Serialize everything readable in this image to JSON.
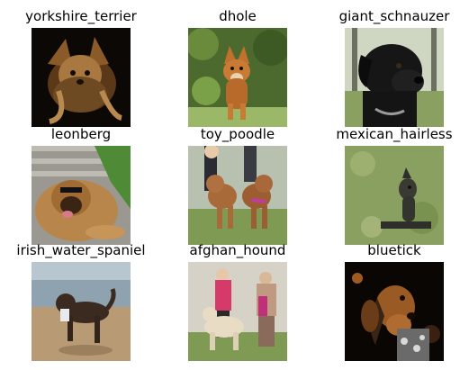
{
  "grid": {
    "rows": 3,
    "cols": 3,
    "cells": [
      {
        "label": "yorkshire_terrier"
      },
      {
        "label": "dhole"
      },
      {
        "label": "giant_schnauzer"
      },
      {
        "label": "leonberg"
      },
      {
        "label": "toy_poodle"
      },
      {
        "label": "mexican_hairless"
      },
      {
        "label": "irish_water_spaniel"
      },
      {
        "label": "afghan_hound"
      },
      {
        "label": "bluetick"
      }
    ]
  }
}
